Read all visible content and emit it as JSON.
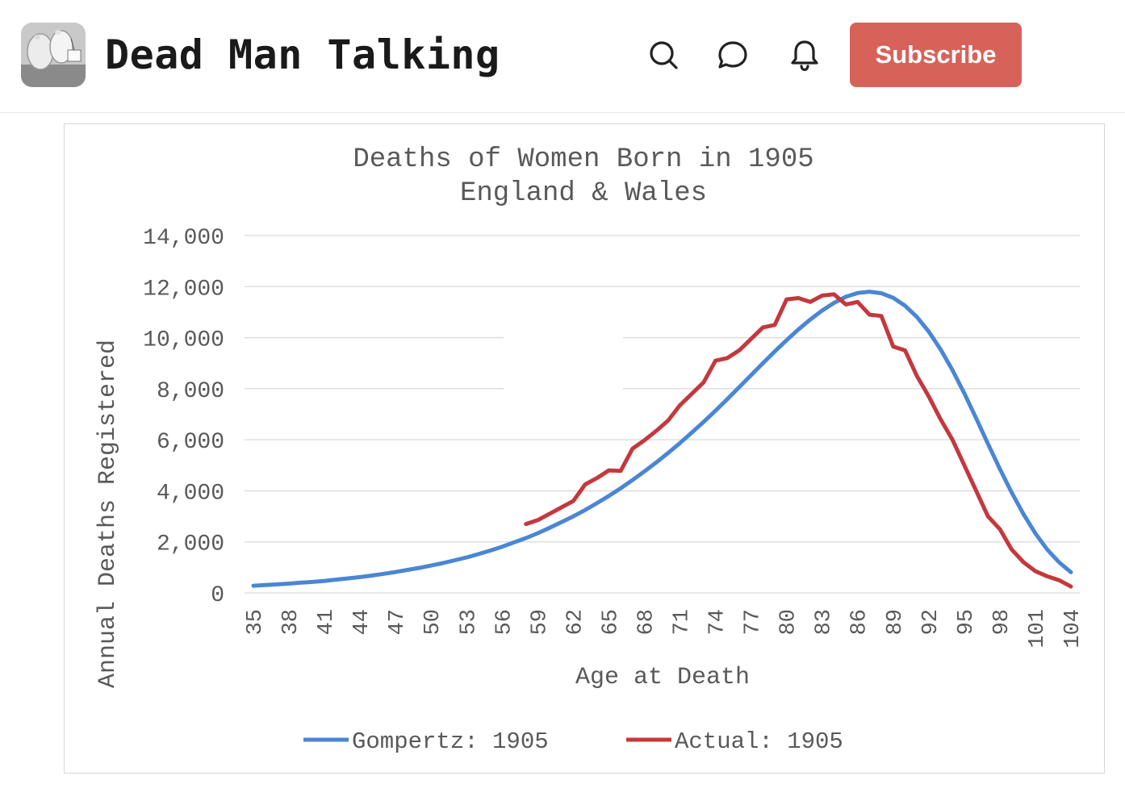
{
  "header": {
    "site_title": "Dead Man Talking",
    "subscribe_label": "Subscribe",
    "icons": [
      "search-icon",
      "comment-icon",
      "bell-icon"
    ],
    "accent_color": "#d7625a"
  },
  "chart_data": {
    "type": "line",
    "title": "Deaths of Women Born in 1905",
    "subtitle": "England & Wales",
    "xlabel": "Age at Death",
    "ylabel": "Annual Deaths Registered",
    "x_ticks": [
      "35",
      "38",
      "41",
      "44",
      "47",
      "50",
      "53",
      "56",
      "59",
      "62",
      "65",
      "68",
      "71",
      "74",
      "77",
      "80",
      "83",
      "86",
      "89",
      "92",
      "95",
      "98",
      "101",
      "104"
    ],
    "y_ticks": [
      "0",
      "2,000",
      "4,000",
      "6,000",
      "8,000",
      "10,000",
      "12,000",
      "14,000"
    ],
    "xlim": [
      35,
      104
    ],
    "ylim": [
      0,
      14000
    ],
    "grid": true,
    "legend_position": "bottom",
    "series": [
      {
        "name": "Gompertz: 1905",
        "color": "#4a86d4",
        "x": [
          35,
          36,
          37,
          38,
          39,
          40,
          41,
          42,
          43,
          44,
          45,
          46,
          47,
          48,
          49,
          50,
          51,
          52,
          53,
          54,
          55,
          56,
          57,
          58,
          59,
          60,
          61,
          62,
          63,
          64,
          65,
          66,
          67,
          68,
          69,
          70,
          71,
          72,
          73,
          74,
          75,
          76,
          77,
          78,
          79,
          80,
          81,
          82,
          83,
          84,
          85,
          86,
          87,
          88,
          89,
          90,
          91,
          92,
          93,
          94,
          95,
          96,
          97,
          98,
          99,
          100,
          101,
          102,
          103,
          104
        ],
        "y": [
          280,
          305,
          335,
          365,
          400,
          430,
          470,
          520,
          570,
          620,
          680,
          750,
          820,
          900,
          980,
          1070,
          1170,
          1280,
          1390,
          1520,
          1660,
          1810,
          1980,
          2150,
          2340,
          2550,
          2770,
          3000,
          3250,
          3520,
          3800,
          4100,
          4420,
          4760,
          5110,
          5480,
          5870,
          6280,
          6700,
          7140,
          7590,
          8060,
          8530,
          9000,
          9460,
          9900,
          10320,
          10710,
          11060,
          11360,
          11600,
          11750,
          11800,
          11740,
          11560,
          11250,
          10810,
          10240,
          9540,
          8730,
          7820,
          6840,
          5840,
          4860,
          3930,
          3080,
          2330,
          1700,
          1200,
          810
        ]
      },
      {
        "name": "Actual: 1905",
        "color": "#c4383d",
        "x": [
          58,
          59,
          60,
          61,
          62,
          63,
          64,
          65,
          66,
          67,
          68,
          69,
          70,
          71,
          72,
          73,
          74,
          75,
          76,
          77,
          78,
          79,
          80,
          81,
          82,
          83,
          84,
          85,
          86,
          87,
          88,
          89,
          90,
          91,
          92,
          93,
          94,
          95,
          96,
          97,
          98,
          99,
          100,
          101,
          102,
          103,
          104
        ],
        "y": [
          2700,
          2850,
          3100,
          3350,
          3600,
          4250,
          4500,
          4800,
          4780,
          5650,
          5980,
          6350,
          6750,
          7350,
          7800,
          8250,
          9100,
          9200,
          9500,
          9950,
          10400,
          10500,
          11500,
          11550,
          11400,
          11650,
          11700,
          11300,
          11400,
          10900,
          10850,
          9650,
          9500,
          8500,
          7700,
          6800,
          6000,
          5000,
          4000,
          3000,
          2500,
          1700,
          1200,
          850,
          650,
          500,
          250
        ]
      }
    ]
  }
}
